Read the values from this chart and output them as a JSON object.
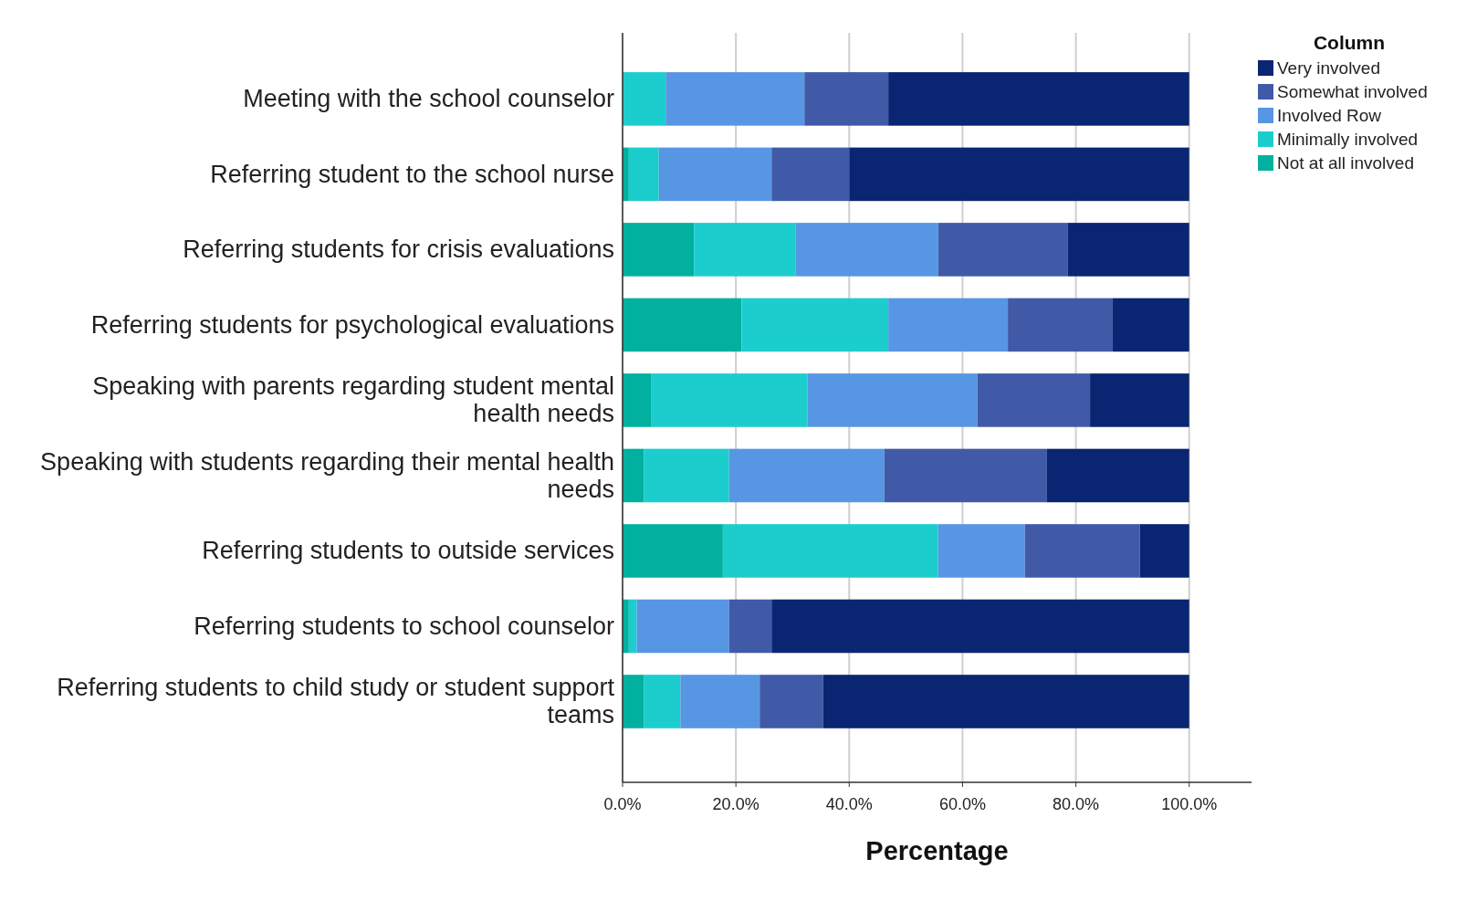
{
  "chart_data": {
    "type": "bar",
    "orientation": "horizontal",
    "stacked": true,
    "xlabel": "Percentage",
    "legend_title": "Column",
    "legend": "top right",
    "grid": "x",
    "categories": [
      "Meeting with the school counselor",
      "Referring student to the school nurse",
      "Referring students for crisis evaluations",
      "Referring students for psychological evaluations",
      "Speaking with parents regarding student mental health needs",
      "Speaking with students regarding their mental health needs",
      "Referring students to outside services",
      "Referring students to school counselor",
      "Referring students to child study or student support teams"
    ],
    "xlim": [
      0,
      111
    ],
    "xticks": [
      {
        "value": 0,
        "label": "0.0%"
      },
      {
        "value": 20,
        "label": "20.0%"
      },
      {
        "value": 40,
        "label": "40.0%"
      },
      {
        "value": 60,
        "label": "60.0%"
      },
      {
        "value": 80,
        "label": "80.0%"
      },
      {
        "value": 100,
        "label": "100.0%"
      }
    ],
    "series": [
      {
        "name": "Not at all involved",
        "color": "#02b0a0",
        "values": [
          0,
          1.1,
          12.6,
          21.0,
          5.0,
          3.8,
          17.7,
          1.1,
          3.8
        ]
      },
      {
        "name": "Minimally involved",
        "color": "#1ccdce",
        "values": [
          7.6,
          5.3,
          17.9,
          25.9,
          27.6,
          15.0,
          38.0,
          1.4,
          6.4
        ]
      },
      {
        "name": "Involved Row",
        "color": "#5796e3",
        "values": [
          24.5,
          19.9,
          25.2,
          21.1,
          30.0,
          27.4,
          15.3,
          16.3,
          14.0
        ]
      },
      {
        "name": "Somewhat involved",
        "color": "#405aa8",
        "values": [
          14.8,
          13.7,
          22.9,
          18.5,
          19.9,
          28.7,
          20.3,
          7.5,
          11.2
        ]
      },
      {
        "name": "Very involved",
        "color": "#0a2672",
        "values": [
          53.1,
          60.0,
          21.4,
          13.5,
          17.5,
          25.1,
          8.7,
          73.7,
          64.6
        ]
      }
    ]
  }
}
